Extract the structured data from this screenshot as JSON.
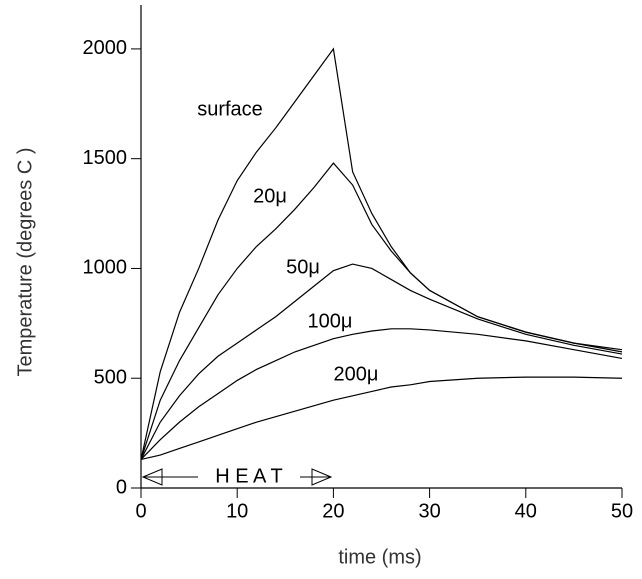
{
  "chart_data": {
    "type": "line",
    "x_label": "time (ms)",
    "y_label": "Temperature (degrees C )",
    "annotation": "H E A T",
    "x": [
      0,
      2,
      4,
      6,
      8,
      10,
      12,
      14,
      16,
      18,
      20,
      22,
      24,
      26,
      28,
      30,
      35,
      40,
      45,
      50
    ],
    "series": [
      {
        "name": "surface",
        "color": "#000000",
        "values": [
          130,
          530,
          800,
          1000,
          1220,
          1400,
          1530,
          1640,
          1760,
          1880,
          2000,
          1440,
          1250,
          1100,
          980,
          900,
          780,
          710,
          660,
          630
        ]
      },
      {
        "name": "20μ",
        "color": "#000000",
        "values": [
          130,
          400,
          580,
          730,
          880,
          1000,
          1100,
          1180,
          1270,
          1370,
          1480,
          1380,
          1200,
          1080,
          980,
          900,
          780,
          710,
          660,
          620
        ]
      },
      {
        "name": "50μ",
        "color": "#000000",
        "values": [
          130,
          300,
          420,
          520,
          600,
          660,
          720,
          780,
          850,
          920,
          990,
          1020,
          1000,
          950,
          900,
          860,
          770,
          700,
          650,
          610
        ]
      },
      {
        "name": "100μ",
        "color": "#000000",
        "values": [
          130,
          220,
          300,
          370,
          430,
          490,
          540,
          580,
          620,
          650,
          680,
          700,
          715,
          725,
          725,
          720,
          700,
          670,
          630,
          590
        ]
      },
      {
        "name": "200μ",
        "color": "#000000",
        "values": [
          130,
          150,
          180,
          210,
          240,
          270,
          300,
          325,
          350,
          375,
          400,
          420,
          440,
          460,
          470,
          485,
          500,
          505,
          505,
          500
        ]
      }
    ],
    "xlim": [
      0,
      50
    ],
    "xticks": [
      0,
      10,
      20,
      30,
      40,
      50
    ],
    "ylim": [
      0,
      2200
    ],
    "yticks": [
      0,
      500,
      1000,
      1500,
      2000
    ],
    "grid": false
  }
}
